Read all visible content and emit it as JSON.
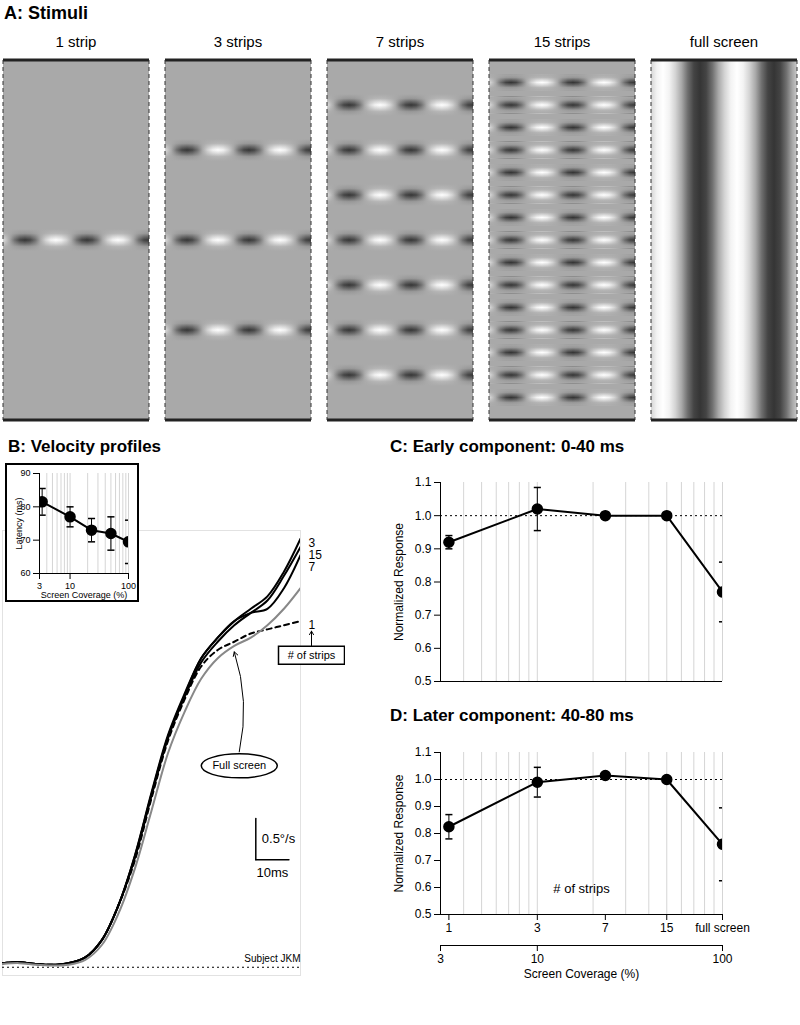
{
  "chart_data": [
    {
      "type": "stimuli",
      "title": "A: Stimuli",
      "categories": [
        "1 strip",
        "3 strips",
        "7 strips",
        "15 strips",
        "full screen"
      ],
      "values": [
        1,
        3,
        7,
        15,
        null
      ]
    },
    {
      "type": "line",
      "title": "B: Velocity profiles",
      "x": [
        0,
        5,
        10,
        15,
        20,
        25,
        30,
        35,
        40,
        45,
        50,
        55,
        60,
        65,
        70,
        75,
        80,
        85,
        90
      ],
      "series": [
        {
          "name": "3",
          "color": "#000000",
          "line_style": "solid",
          "values": [
            0.05,
            0.06,
            0.04,
            0.03,
            0.05,
            0.12,
            0.33,
            0.75,
            1.35,
            2.1,
            2.8,
            3.3,
            3.75,
            4.0,
            4.2,
            4.35,
            4.5,
            4.8,
            5.2
          ]
        },
        {
          "name": "15",
          "color": "#000000",
          "line_style": "solid",
          "values": [
            0.05,
            0.06,
            0.04,
            0.03,
            0.05,
            0.12,
            0.33,
            0.75,
            1.33,
            2.08,
            2.78,
            3.28,
            3.7,
            3.95,
            4.15,
            4.3,
            4.45,
            4.75,
            5.1
          ]
        },
        {
          "name": "7",
          "color": "#000000",
          "line_style": "solid",
          "values": [
            0.05,
            0.06,
            0.04,
            0.03,
            0.05,
            0.12,
            0.33,
            0.75,
            1.36,
            2.12,
            2.82,
            3.32,
            3.75,
            4.0,
            4.2,
            4.3,
            4.35,
            4.6,
            5.0
          ]
        },
        {
          "name": "1",
          "color": "#000000",
          "line_style": "dashed",
          "values": [
            0.05,
            0.06,
            0.04,
            0.03,
            0.05,
            0.12,
            0.33,
            0.75,
            1.3,
            2.05,
            2.75,
            3.25,
            3.65,
            3.85,
            3.95,
            4.05,
            4.1,
            4.15,
            4.2
          ]
        },
        {
          "name": "Full screen",
          "color": "#888888",
          "line_style": "solid",
          "values": [
            0.04,
            0.05,
            0.03,
            0.02,
            0.03,
            0.09,
            0.27,
            0.65,
            1.2,
            1.9,
            2.6,
            3.1,
            3.5,
            3.75,
            3.9,
            4.0,
            4.15,
            4.35,
            4.6
          ]
        }
      ],
      "xlim": [
        0,
        90
      ],
      "ylim": [
        -0.1,
        5.3
      ],
      "tick_labels": false,
      "baseline": 0,
      "baseline_label": "Subject JKM",
      "annotation": {
        "text": "# of strips",
        "series": "1"
      },
      "scale_bars": [
        {
          "axis": "y",
          "value": 0.5,
          "label": "0.5°/s"
        },
        {
          "axis": "x",
          "value": 10,
          "label": "10ms"
        }
      ]
    },
    {
      "type": "line",
      "log": "x",
      "x": [
        3.33,
        10,
        23.3,
        50,
        100
      ],
      "values": [
        81.5,
        77,
        73,
        72,
        69.5
      ],
      "errors": [
        4,
        3,
        3.5,
        5,
        6.5
      ],
      "x_label": "Screen Coverage (%)",
      "y_label": "Latency (ms)",
      "xlim": [
        3,
        100
      ],
      "xticks": [
        3,
        10,
        100
      ],
      "ylim": [
        60,
        90
      ],
      "yticks": [
        60,
        70,
        80,
        90
      ],
      "grid": "x",
      "marker": "circle",
      "color": "#000000"
    },
    {
      "type": "line",
      "title": "C: Early component: 0-40 ms",
      "log": "x",
      "x": [
        3.33,
        10,
        23.3,
        50,
        100
      ],
      "values": [
        0.92,
        1.02,
        1,
        1,
        0.77
      ],
      "errors": [
        0.02,
        0.065,
        0.01,
        0.008,
        0.09
      ],
      "y_label": "Normalized Response",
      "xlim": [
        3,
        100
      ],
      "ylim": [
        0.5,
        1.1
      ],
      "yticks": [
        0.5,
        0.6,
        0.7,
        0.8,
        0.9,
        {
          "value": 1,
          "label": "1.0"
        },
        1.1
      ],
      "reference": 1,
      "tick_labels": "y",
      "grid": "x",
      "marker": "circle",
      "color": "#000000"
    },
    {
      "type": "line",
      "title": "D: Later component: 40-80 ms",
      "log": "x",
      "x": [
        3.33,
        10,
        23.3,
        50,
        100
      ],
      "values": [
        0.825,
        0.99,
        1.015,
        1,
        0.76
      ],
      "errors": [
        0.045,
        0.055,
        0.01,
        0.008,
        0.135
      ],
      "x_label": "Screen Coverage (%)",
      "y_label": "Normalized Response",
      "xlim": [
        3,
        100
      ],
      "xticks": [
        3,
        10,
        100
      ],
      "ylim": [
        0.5,
        1.1
      ],
      "yticks": [
        0.5,
        0.6,
        0.7,
        0.8,
        0.9,
        {
          "value": 1,
          "label": "1.0"
        },
        1.1
      ],
      "strip_label": "# of strips",
      "strip_ticks": [
        {
          "value": 3.33,
          "label": "1"
        },
        {
          "value": 10,
          "label": "3"
        },
        {
          "value": 23.3,
          "label": "7"
        },
        {
          "value": 50,
          "label": "15"
        },
        {
          "value": 100,
          "label": "full screen"
        }
      ],
      "reference": 1,
      "grid": "x",
      "marker": "circle",
      "color": "#000000"
    }
  ]
}
